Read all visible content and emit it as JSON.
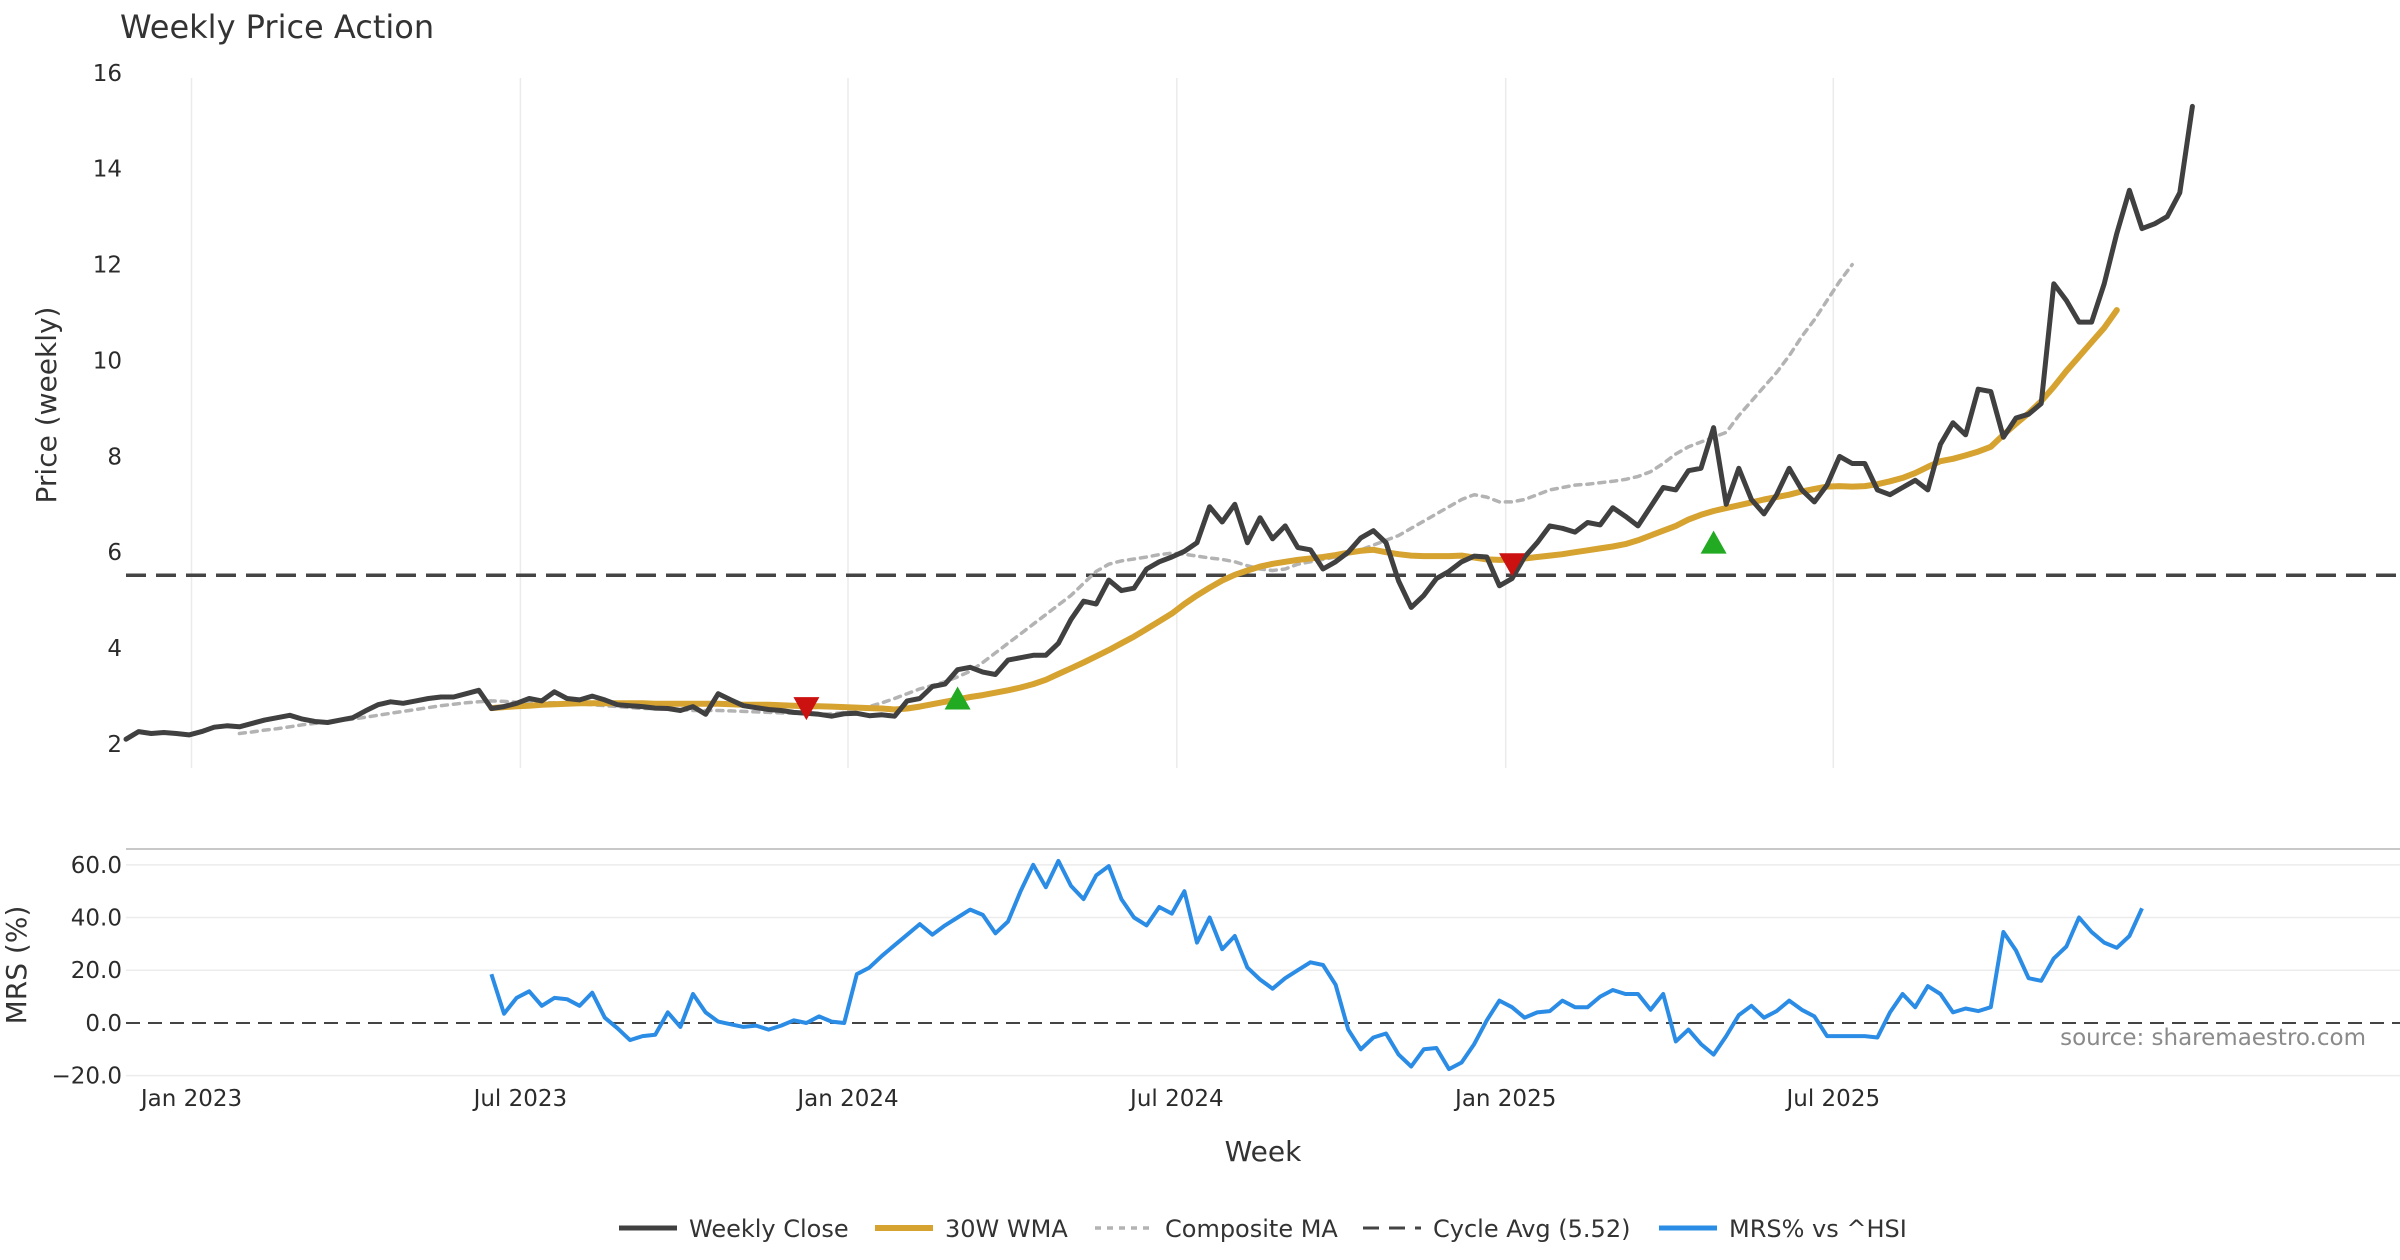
{
  "chart_data": {
    "type": "line",
    "title": "Weekly Price Action",
    "xlabel": "Week",
    "source": "source: sharemaestro.com",
    "x_ticks": [
      "Jan 2023",
      "Jul 2023",
      "Jan 2024",
      "Jul 2024",
      "Jan 2025",
      "Jul 2025"
    ],
    "price_panel": {
      "ylabel": "Price (weekly)",
      "ylim": [
        1.5,
        16.1
      ],
      "yticks": [
        "2",
        "4",
        "6",
        "8",
        "10",
        "12",
        "14",
        "16"
      ],
      "cycle_avg": 5.52,
      "series": [
        {
          "name": "Weekly Close",
          "color": "#404040",
          "start_week": 0,
          "values": [
            2.1,
            2.26,
            2.22,
            2.24,
            2.22,
            2.19,
            2.26,
            2.35,
            2.38,
            2.36,
            2.43,
            2.5,
            2.55,
            2.6,
            2.52,
            2.47,
            2.45,
            2.5,
            2.55,
            2.69,
            2.82,
            2.88,
            2.85,
            2.9,
            2.95,
            2.98,
            2.98,
            3.05,
            3.12,
            2.74,
            2.78,
            2.85,
            2.95,
            2.9,
            3.09,
            2.95,
            2.92,
            3.0,
            2.92,
            2.82,
            2.8,
            2.78,
            2.75,
            2.74,
            2.7,
            2.78,
            2.62,
            3.05,
            2.92,
            2.8,
            2.76,
            2.72,
            2.7,
            2.66,
            2.64,
            2.62,
            2.58,
            2.63,
            2.64,
            2.59,
            2.61,
            2.58,
            2.9,
            2.95,
            3.2,
            3.25,
            3.55,
            3.6,
            3.5,
            3.45,
            3.75,
            3.8,
            3.85,
            3.85,
            4.1,
            4.6,
            4.98,
            4.92,
            5.42,
            5.2,
            5.25,
            5.65,
            5.8,
            5.9,
            6.02,
            6.2,
            6.95,
            6.63,
            7.0,
            6.2,
            6.72,
            6.28,
            6.55,
            6.1,
            6.05,
            5.65,
            5.8,
            6.0,
            6.3,
            6.45,
            6.2,
            5.4,
            4.85,
            5.1,
            5.45,
            5.6,
            5.8,
            5.92,
            5.9,
            5.3,
            5.45,
            5.9,
            6.2,
            6.55,
            6.5,
            6.42,
            6.62,
            6.57,
            6.93,
            6.75,
            6.55,
            6.95,
            7.35,
            7.3,
            7.7,
            7.75,
            8.6,
            7.0,
            7.75,
            7.1,
            6.8,
            7.2,
            7.75,
            7.3,
            7.05,
            7.4,
            8.0,
            7.85,
            7.85,
            7.3,
            7.2,
            7.35,
            7.5,
            7.3,
            8.25,
            8.7,
            8.45,
            9.4,
            9.35,
            8.4,
            8.8,
            8.88,
            9.1,
            11.6,
            11.25,
            10.8,
            10.8,
            11.6,
            12.65,
            13.55,
            12.75,
            12.85,
            13.0,
            13.5,
            15.3
          ]
        },
        {
          "name": "30W WMA",
          "color": "#d6a230",
          "start_week": 29,
          "values": [
            2.75,
            2.77,
            2.79,
            2.8,
            2.82,
            2.83,
            2.84,
            2.85,
            2.85,
            2.85,
            2.85,
            2.85,
            2.85,
            2.84,
            2.84,
            2.84,
            2.84,
            2.84,
            2.84,
            2.83,
            2.82,
            2.82,
            2.82,
            2.81,
            2.8,
            2.79,
            2.79,
            2.78,
            2.77,
            2.76,
            2.75,
            2.74,
            2.72,
            2.74,
            2.78,
            2.83,
            2.88,
            2.93,
            2.98,
            3.02,
            3.07,
            3.12,
            3.18,
            3.25,
            3.34,
            3.46,
            3.58,
            3.7,
            3.83,
            3.96,
            4.1,
            4.24,
            4.4,
            4.56,
            4.72,
            4.92,
            5.1,
            5.26,
            5.41,
            5.53,
            5.62,
            5.7,
            5.76,
            5.8,
            5.84,
            5.87,
            5.9,
            5.94,
            5.99,
            6.03,
            6.05,
            6.0,
            5.96,
            5.93,
            5.92,
            5.92,
            5.92,
            5.93,
            5.89,
            5.85,
            5.84,
            5.85,
            5.87,
            5.9,
            5.93,
            5.96,
            6.0,
            6.04,
            6.08,
            6.12,
            6.17,
            6.25,
            6.35,
            6.45,
            6.55,
            6.68,
            6.78,
            6.86,
            6.92,
            6.98,
            7.04,
            7.1,
            7.15,
            7.2,
            7.27,
            7.32,
            7.37,
            7.38,
            7.37,
            7.38,
            7.42,
            7.48,
            7.55,
            7.65,
            7.78,
            7.9,
            7.95,
            8.02,
            8.1,
            8.2,
            8.45,
            8.68,
            8.9,
            9.15,
            9.45,
            9.78,
            10.08,
            10.38,
            10.68,
            11.05
          ]
        },
        {
          "name": "Composite MA",
          "color": "#b3b3b3",
          "start_week": 9,
          "values": [
            2.22,
            2.25,
            2.29,
            2.32,
            2.36,
            2.4,
            2.43,
            2.46,
            2.49,
            2.52,
            2.56,
            2.6,
            2.64,
            2.68,
            2.72,
            2.76,
            2.8,
            2.83,
            2.86,
            2.88,
            2.9,
            2.89,
            2.87,
            2.86,
            2.86,
            2.86,
            2.86,
            2.84,
            2.82,
            2.8,
            2.78,
            2.76,
            2.74,
            2.74,
            2.73,
            2.72,
            2.7,
            2.7,
            2.7,
            2.69,
            2.68,
            2.67,
            2.66,
            2.65,
            2.64,
            2.63,
            2.62,
            2.63,
            2.66,
            2.72,
            2.78,
            2.86,
            2.95,
            3.05,
            3.15,
            3.22,
            3.3,
            3.4,
            3.52,
            3.7,
            3.9,
            4.1,
            4.3,
            4.5,
            4.7,
            4.9,
            5.1,
            5.35,
            5.6,
            5.75,
            5.82,
            5.86,
            5.9,
            5.95,
            5.98,
            5.96,
            5.92,
            5.88,
            5.85,
            5.8,
            5.72,
            5.65,
            5.62,
            5.65,
            5.75,
            5.8,
            5.85,
            5.9,
            5.95,
            6.05,
            6.15,
            6.25,
            6.35,
            6.5,
            6.65,
            6.8,
            6.95,
            7.1,
            7.2,
            7.15,
            7.05,
            7.05,
            7.1,
            7.2,
            7.3,
            7.35,
            7.4,
            7.42,
            7.45,
            7.48,
            7.52,
            7.58,
            7.68,
            7.85,
            8.05,
            8.2,
            8.3,
            8.4,
            8.5,
            8.85,
            9.15,
            9.45,
            9.75,
            10.1,
            10.5,
            10.85,
            11.25,
            11.65,
            12.0
          ]
        }
      ],
      "signals": [
        {
          "type": "sell",
          "week": 54,
          "value": 2.75,
          "color": "#cc1111"
        },
        {
          "type": "buy",
          "week": 66,
          "value": 2.95,
          "color": "#22aa22"
        },
        {
          "type": "sell",
          "week": 110,
          "value": 5.75,
          "color": "#cc1111"
        },
        {
          "type": "buy",
          "week": 126,
          "value": 6.2,
          "color": "#22aa22"
        }
      ]
    },
    "mrs_panel": {
      "ylabel": "MRS (%)",
      "ylim": [
        -20.5,
        66
      ],
      "yticks": [
        "−20.0",
        "0.0",
        "20.0",
        "40.0",
        "60.0"
      ],
      "series": {
        "name": "MRS% vs ^HSI",
        "color": "#2b8ce6",
        "start_week": 29,
        "values": [
          18.5,
          3.5,
          9.5,
          12.0,
          6.5,
          9.5,
          9.0,
          6.5,
          11.5,
          2.0,
          -2.0,
          -6.5,
          -5.0,
          -4.5,
          4.0,
          -1.5,
          11.0,
          4.0,
          0.5,
          -0.5,
          -1.5,
          -1.0,
          -2.5,
          -1.0,
          1.0,
          0.0,
          2.5,
          0.5,
          0.0,
          18.5,
          21.0,
          25.5,
          29.5,
          33.5,
          37.5,
          33.5,
          37.0,
          40.0,
          43.0,
          41.0,
          34.0,
          38.5,
          50.0,
          60.0,
          51.5,
          61.5,
          52.0,
          47.0,
          56.0,
          59.5,
          47.0,
          40.0,
          37.0,
          44.0,
          41.5,
          50.0,
          30.5,
          40.0,
          28.0,
          33.0,
          21.0,
          16.5,
          13.0,
          17.0,
          20.0,
          23.0,
          22.0,
          14.5,
          -2.5,
          -10.0,
          -5.5,
          -4.0,
          -12.0,
          -16.5,
          -10.0,
          -9.5,
          -17.5,
          -15.0,
          -8.0,
          1.0,
          8.5,
          6.0,
          2.0,
          4.0,
          4.5,
          8.5,
          6.0,
          6.0,
          10.0,
          12.5,
          11.0,
          11.0,
          5.0,
          11.0,
          -7.0,
          -2.5,
          -8.0,
          -12.0,
          -5.0,
          3.0,
          6.5,
          2.0,
          4.5,
          8.5,
          5.0,
          2.5,
          -5.0,
          -5.0,
          -5.0,
          -5.0,
          -5.5,
          4.0,
          11.0,
          6.0,
          14.0,
          11.0,
          4.0,
          5.5,
          4.5,
          6.0,
          34.5,
          27.5,
          17.0,
          16.0,
          24.5,
          29.0,
          40.0,
          34.5,
          30.5,
          28.5,
          33.0,
          43.5
        ]
      }
    },
    "legend": {
      "placement": "bottom-center",
      "entries": [
        "Weekly Close",
        "30W WMA",
        "Composite MA",
        "Cycle Avg (5.52)",
        "MRS% vs ^HSI"
      ]
    }
  }
}
